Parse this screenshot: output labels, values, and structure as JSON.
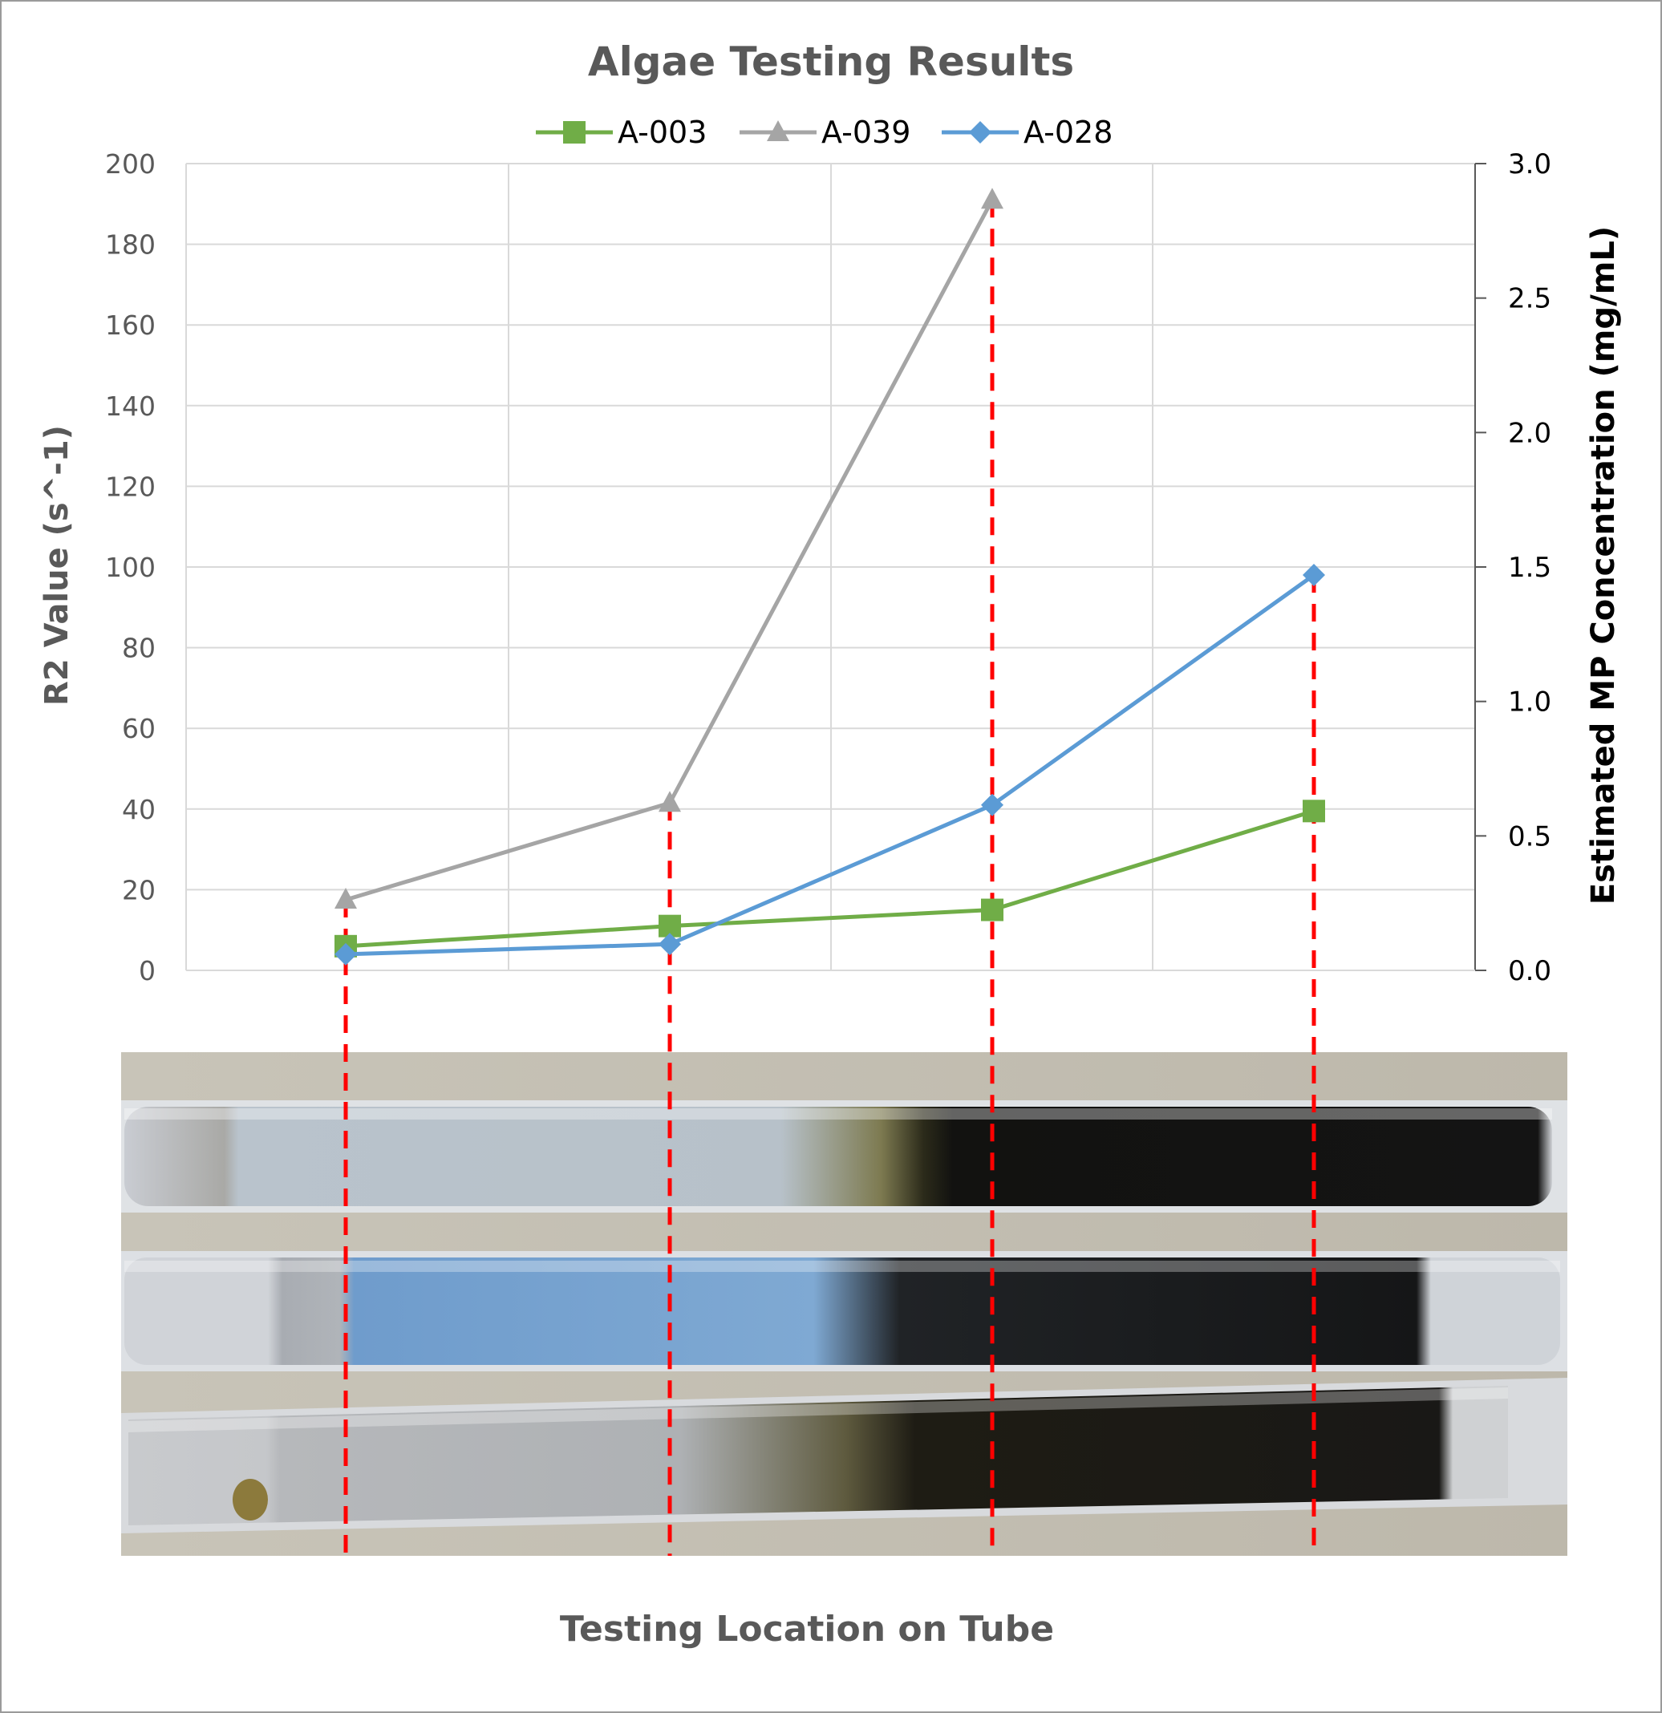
{
  "chart_data": {
    "type": "line",
    "title": "Algae Testing Results",
    "xlabel": "Testing Location on Tube",
    "ylabel": "R2 Value (s^-1)",
    "ylabel_right": "Estimated MP Concentration (mg/mL)",
    "ylim": [
      0,
      200
    ],
    "ylim_right": [
      0,
      3.0
    ],
    "y_ticks": [
      "0",
      "20",
      "40",
      "60",
      "80",
      "100",
      "120",
      "140",
      "160",
      "180",
      "200"
    ],
    "y_ticks_right": [
      "0.0",
      "0.5",
      "1.0",
      "1.5",
      "2.0",
      "2.5",
      "3.0"
    ],
    "grid": true,
    "legend_position": "top",
    "x": [
      1,
      2,
      3,
      4
    ],
    "series": [
      {
        "name": "A-003",
        "marker": "square",
        "color": "#70AD47",
        "values": [
          6,
          11,
          15,
          39.5
        ]
      },
      {
        "name": "A-039",
        "marker": "triangle",
        "color": "#A5A5A5",
        "values": [
          17.5,
          41.5,
          191,
          null
        ]
      },
      {
        "name": "A-028",
        "marker": "diamond",
        "color": "#5B9BD5",
        "values": [
          4,
          6.5,
          41,
          98
        ]
      }
    ],
    "annotations": {
      "guide_lines": "red dashed vertical lines at each testing location",
      "guide_color": "#FF0000",
      "photo": "three glass tubes with algae"
    }
  }
}
